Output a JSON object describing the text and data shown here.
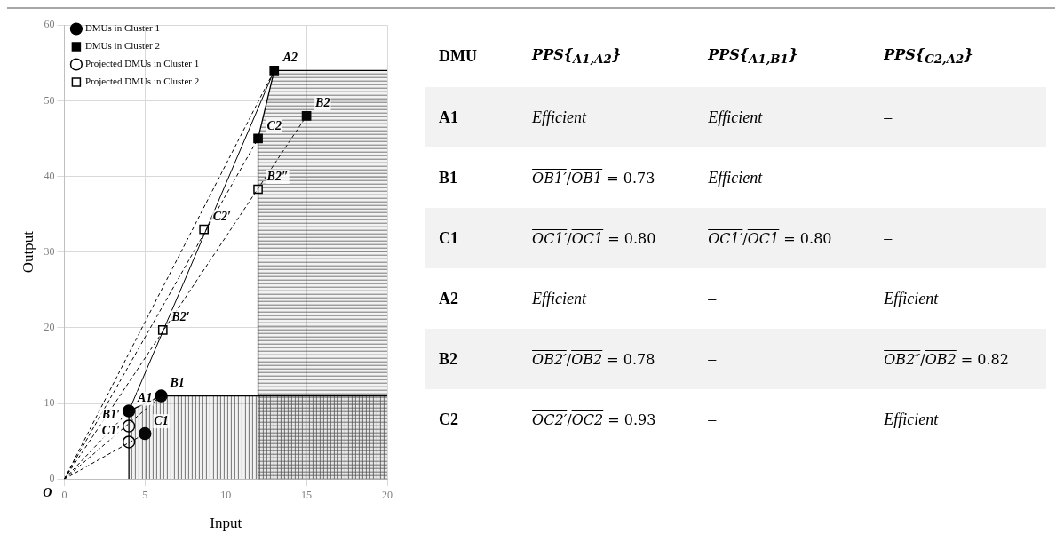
{
  "chart_data": [
    {
      "type": "scatter",
      "xlabel": "Input",
      "ylabel": "Output",
      "xlim": [
        0,
        20
      ],
      "ylim": [
        0,
        60
      ],
      "xticks": [
        0,
        5,
        10,
        15,
        20
      ],
      "yticks": [
        0,
        10,
        20,
        30,
        40,
        50,
        60
      ],
      "grid": true,
      "legend": "top left",
      "series": [
        {
          "type": "area",
          "color": "#555555",
          "x": [
            4,
            4,
            6,
            20
          ],
          "values": [
            0,
            9,
            11,
            11
          ]
        },
        {
          "type": "area",
          "color": "#555555",
          "x": [
            12,
            12,
            13,
            20
          ],
          "values": [
            0,
            45,
            54,
            54
          ]
        },
        {
          "type": "line",
          "color": "#000000",
          "line_style": "solid",
          "x": [
            4,
            13
          ],
          "values": [
            9,
            54
          ]
        },
        {
          "type": "line",
          "color": "#000000",
          "line_style": "dashed",
          "x": [
            0,
            13
          ],
          "values": [
            0,
            54
          ]
        },
        {
          "type": "line",
          "color": "#000000",
          "line_style": "dashed",
          "x": [
            0,
            12
          ],
          "values": [
            0,
            45
          ]
        },
        {
          "type": "line",
          "color": "#000000",
          "line_style": "dashed",
          "x": [
            0,
            15
          ],
          "values": [
            0,
            48
          ]
        },
        {
          "type": "line",
          "color": "#000000",
          "line_style": "dashed",
          "x": [
            0,
            4
          ],
          "values": [
            0,
            9
          ]
        },
        {
          "type": "line",
          "color": "#000000",
          "line_style": "dashed",
          "x": [
            0,
            6
          ],
          "values": [
            0,
            11
          ]
        },
        {
          "type": "line",
          "color": "#000000",
          "line_style": "dashed",
          "x": [
            0,
            5
          ],
          "values": [
            0,
            6
          ]
        },
        {
          "type": "scatter",
          "name": "DMUs in Cluster 1",
          "color": "#000000",
          "marker": "circle",
          "x": [
            4,
            6,
            5
          ],
          "values": [
            9,
            11,
            6
          ]
        },
        {
          "type": "scatter",
          "name": "DMUs in Cluster 2",
          "color": "#000000",
          "marker": "square",
          "x": [
            13,
            15,
            12
          ],
          "values": [
            54,
            48,
            45
          ]
        },
        {
          "type": "scatter",
          "name": "Projected DMUs in Cluster 1",
          "color": "#ffffff",
          "marker": "circle",
          "x": [
            4,
            4
          ],
          "values": [
            7,
            4.9
          ]
        },
        {
          "type": "scatter",
          "name": "Projected DMUs in Cluster 2",
          "color": "#ffffff",
          "marker": "square",
          "x": [
            8.65,
            6.1,
            12
          ],
          "values": [
            33,
            19.7,
            38.3
          ]
        }
      ],
      "annotations": [
        {
          "text": "A1",
          "x": 4,
          "y": 9
        },
        {
          "text": "B1",
          "x": 6,
          "y": 11
        },
        {
          "text": "C1",
          "x": 5,
          "y": 6
        },
        {
          "text": "A2",
          "x": 13,
          "y": 54
        },
        {
          "text": "B2",
          "x": 15,
          "y": 48
        },
        {
          "text": "C2",
          "x": 12,
          "y": 45
        },
        {
          "text": "B1′",
          "x": 4,
          "y": 7
        },
        {
          "text": "C1′",
          "x": 4,
          "y": 4.9
        },
        {
          "text": "C2′",
          "x": 8.65,
          "y": 33
        },
        {
          "text": "B2′",
          "x": 6.1,
          "y": 19.7
        },
        {
          "text": "B2″",
          "x": 12,
          "y": 38.3
        },
        {
          "text": "O",
          "x": 0,
          "y": 0
        }
      ]
    },
    {
      "type": "other",
      "categories": [
        "DMU",
        "PPS{$_{A1,A2}$}",
        "PPS{$_{A1,B1}$}",
        "PPS{$_{C2,A2}$}"
      ],
      "y_categories": [
        "A1",
        "B1",
        "C1",
        "A2",
        "B2",
        "C2"
      ],
      "cell_labels": [
        [
          "Efficient",
          "Efficient",
          "–"
        ],
        [
          "OB1′/OB1 = 0.73",
          "Efficient",
          "–"
        ],
        [
          "OC1′/OC1 = 0.80",
          "OC1′/OC1 = 0.80",
          "–"
        ],
        [
          "Efficient",
          "–",
          "Efficient"
        ],
        [
          "OB2′/OB2 = 0.78",
          "–",
          "OB2″/OB2 = 0.82"
        ],
        [
          "OC2′/OC2 = 0.93",
          "–",
          "Efficient"
        ]
      ]
    }
  ]
}
